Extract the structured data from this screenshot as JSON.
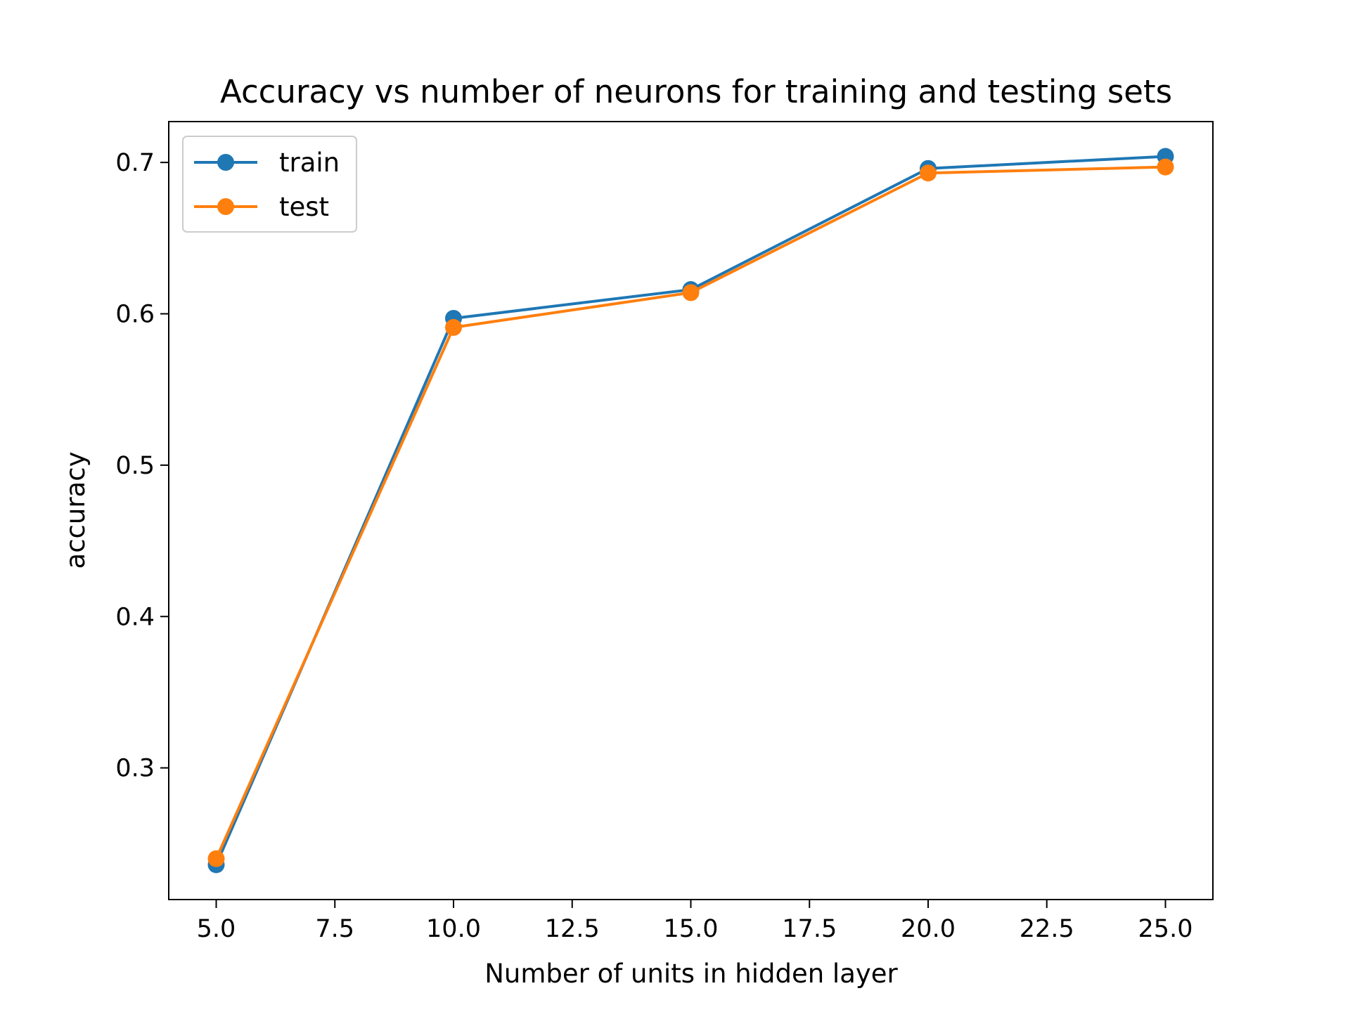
{
  "chart_data": {
    "type": "line",
    "title": "Accuracy vs number of neurons for training and testing sets",
    "xlabel": "Number of units in hidden layer",
    "ylabel": "accuracy",
    "x": [
      5,
      10,
      15,
      20,
      25
    ],
    "series": [
      {
        "name": "train",
        "values": [
          0.236,
          0.597,
          0.616,
          0.696,
          0.704
        ],
        "color": "#1f77b4"
      },
      {
        "name": "test",
        "values": [
          0.24,
          0.591,
          0.614,
          0.693,
          0.697
        ],
        "color": "#ff7f0e"
      }
    ],
    "xlim": [
      4,
      26
    ],
    "ylim": [
      0.213,
      0.727
    ],
    "xticks": [
      5.0,
      7.5,
      10.0,
      12.5,
      15.0,
      17.5,
      20.0,
      22.5,
      25.0
    ],
    "xtick_labels": [
      "5.0",
      "7.5",
      "10.0",
      "12.5",
      "15.0",
      "17.5",
      "20.0",
      "22.5",
      "25.0"
    ],
    "yticks": [
      0.3,
      0.4,
      0.5,
      0.6,
      0.7
    ],
    "ytick_labels": [
      "0.3",
      "0.4",
      "0.5",
      "0.6",
      "0.7"
    ],
    "grid": false,
    "legend": "upper-left"
  }
}
